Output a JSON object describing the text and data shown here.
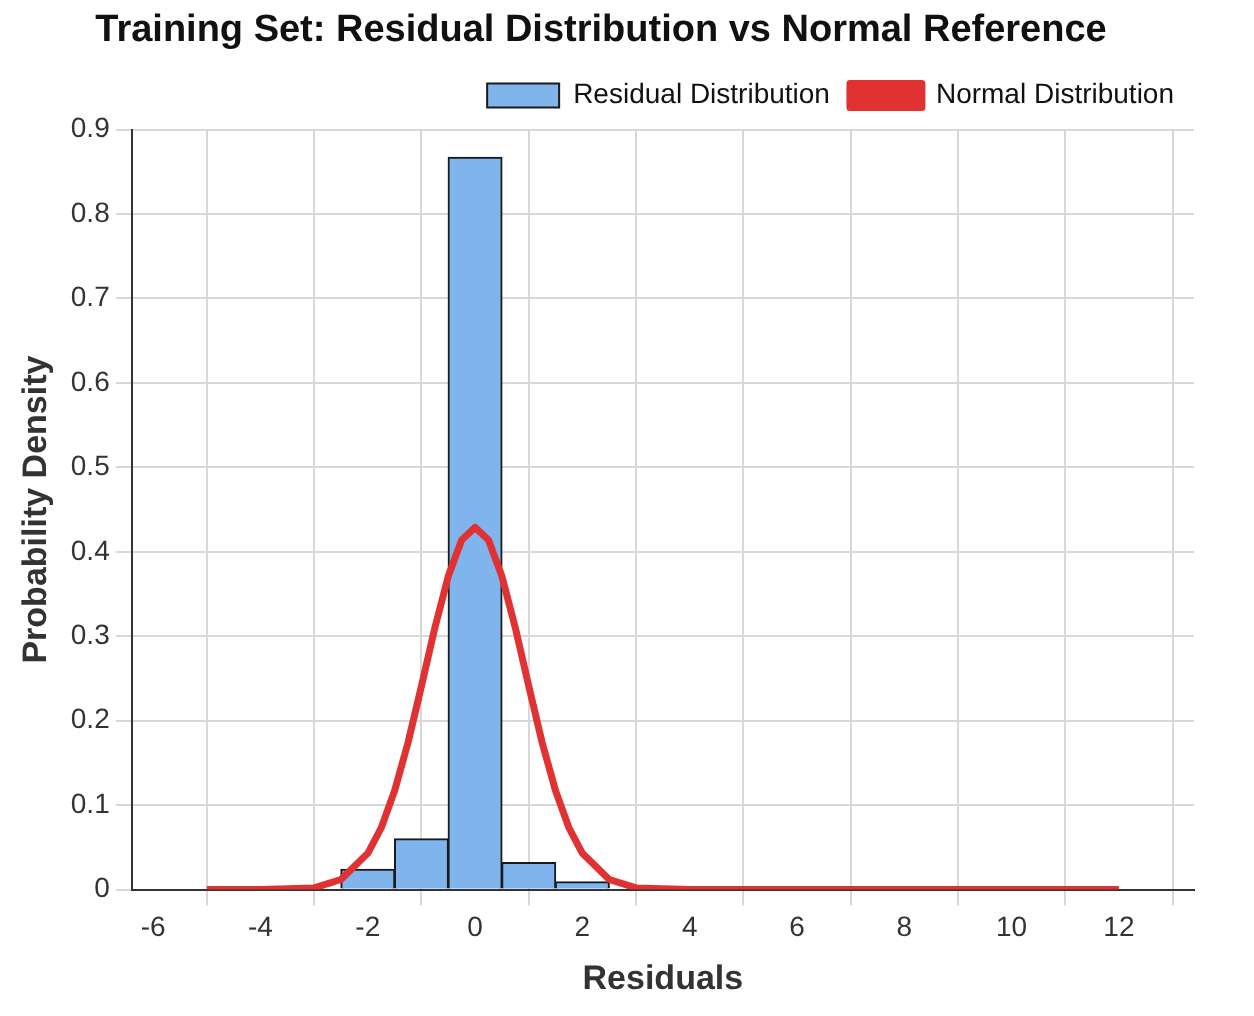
{
  "chart_data": {
    "type": "histogram",
    "title": "Training Set: Residual Distribution vs Normal Reference",
    "xlabel": "Residuals",
    "ylabel": "Probability Density",
    "xlim": [
      -6.4,
      13.4
    ],
    "xticks": [
      -6,
      -4,
      -2,
      0,
      2,
      4,
      6,
      8,
      10,
      12
    ],
    "ylim": [
      0,
      0.9
    ],
    "yticks": [
      0,
      0.1,
      0.2,
      0.3,
      0.4,
      0.5,
      0.6,
      0.7,
      0.8,
      0.9
    ],
    "grid": true,
    "legend": "top right",
    "series": [
      {
        "name": "Residual Distribution",
        "color": "#7fb5ec",
        "bins": [
          -2.5,
          -1.5,
          -0.5,
          0.5,
          1.5,
          2.5
        ],
        "values": [
          0.024,
          0.06,
          0.867,
          0.032,
          0.009
        ]
      },
      {
        "type": "line",
        "name": "Normal Distribution",
        "color": "#e03232",
        "marker": "none",
        "line_style": "solid",
        "x": [
          -5,
          -4,
          -3,
          -2.5,
          -2,
          -1.75,
          -1.5,
          -1.25,
          -1,
          -0.75,
          -0.5,
          -0.25,
          0,
          0.25,
          0.5,
          0.75,
          1,
          1.25,
          1.5,
          1.75,
          2,
          2.5,
          3,
          4,
          5,
          12
        ],
        "values": [
          0,
          0,
          0.002,
          0.012,
          0.043,
          0.073,
          0.117,
          0.174,
          0.241,
          0.31,
          0.371,
          0.414,
          0.429,
          0.414,
          0.371,
          0.31,
          0.241,
          0.174,
          0.117,
          0.073,
          0.043,
          0.012,
          0.002,
          0,
          0,
          0
        ]
      }
    ]
  }
}
